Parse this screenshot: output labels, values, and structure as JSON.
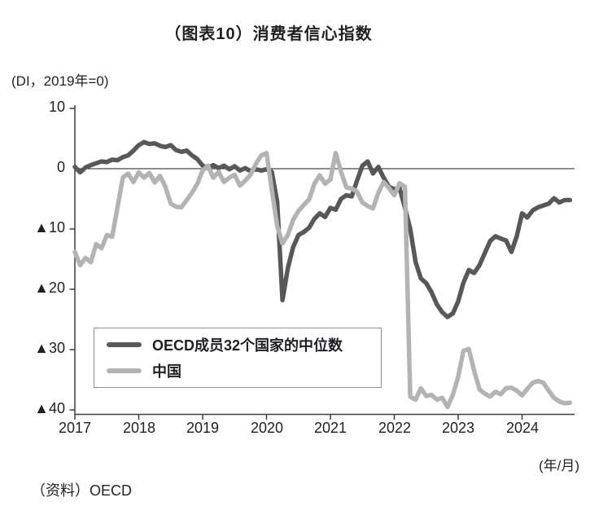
{
  "title": "（图表10）消费者信心指数",
  "unit_label": "(DI，2019年=0)",
  "axis_caption": "(年/月)",
  "source": "（资料）OECD",
  "colors": {
    "oecd_line": "#58585a",
    "china_line": "#b3b3b5",
    "axis": "#3c3c3f",
    "zero_line": "#1a1a1a",
    "text": "#1f1f24",
    "legend_border": "#8d8d90"
  },
  "legend": {
    "items": [
      {
        "label": "OECD成员32个国家的中位数"
      },
      {
        "label": "中国"
      }
    ]
  },
  "chart_data": {
    "type": "line",
    "title": "（图表10）消费者信心指数",
    "ylabel": "(DI，2019年=0)",
    "xlabel": "(年/月)",
    "x_unit": "monthly, Jan 2017 - Oct 2024",
    "x_tick_labels": [
      "2017",
      "2018",
      "2019",
      "2020",
      "2021",
      "2022",
      "2023",
      "2024"
    ],
    "y_tick_labels": [
      "10",
      "0",
      "▲10",
      "▲20",
      "▲30",
      "▲40"
    ],
    "y_tick_values": [
      10,
      0,
      -10,
      -20,
      -30,
      -40
    ],
    "ylim": [
      -41.5,
      10
    ],
    "grid": false,
    "zero_baseline": true,
    "legend_position": "lower-left",
    "series": [
      {
        "name": "OECD成员32个国家的中位数",
        "color": "#58585a",
        "values": [
          0.3,
          -0.6,
          0.2,
          0.6,
          0.9,
          1.2,
          1.1,
          1.5,
          1.4,
          1.9,
          2.2,
          3.0,
          3.9,
          4.4,
          4.1,
          4.2,
          3.8,
          3.6,
          3.9,
          3.1,
          2.8,
          3.0,
          2.2,
          1.6,
          0.5,
          0.1,
          0.6,
          0.1,
          0.5,
          -0.1,
          0.4,
          -0.3,
          0.1,
          -0.4,
          -0.1,
          -0.3,
          -0.1,
          -0.5,
          -5.5,
          -21.8,
          -16.5,
          -13.0,
          -11.0,
          -10.5,
          -9.8,
          -8.3,
          -7.4,
          -8.0,
          -6.5,
          -6.8,
          -5.0,
          -4.4,
          -4.6,
          -2.0,
          0.5,
          1.2,
          -0.8,
          0.3,
          -1.5,
          -3.0,
          -3.4,
          -3.2,
          -6.5,
          -10.0,
          -15.5,
          -18.2,
          -19.0,
          -20.5,
          -22.5,
          -23.8,
          -24.6,
          -24.0,
          -22.0,
          -18.9,
          -16.8,
          -17.3,
          -16.0,
          -14.0,
          -12.0,
          -11.2,
          -11.6,
          -11.9,
          -13.8,
          -11.2,
          -7.4,
          -8.1,
          -6.9,
          -6.4,
          -6.1,
          -5.8,
          -4.9,
          -5.6,
          -5.2,
          -5.2
        ]
      },
      {
        "name": "中国",
        "color": "#b3b3b5",
        "values": [
          -13.8,
          -16.0,
          -14.8,
          -15.5,
          -12.5,
          -13.2,
          -11.0,
          -11.3,
          -6.5,
          -1.5,
          -0.8,
          -2.2,
          -0.6,
          -1.5,
          -0.7,
          -2.3,
          -1.2,
          -3.0,
          -5.8,
          -6.3,
          -6.4,
          -5.2,
          -4.0,
          -2.5,
          -0.3,
          0.5,
          -1.5,
          -0.5,
          -2.2,
          -1.5,
          -1.0,
          -2.8,
          -2.0,
          -1.0,
          0.8,
          2.2,
          2.6,
          -3.5,
          -9.5,
          -12.4,
          -11.0,
          -8.5,
          -7.0,
          -6.0,
          -5.1,
          -2.5,
          -1.1,
          -2.5,
          -1.8,
          2.6,
          -0.5,
          -3.1,
          -3.3,
          -3.8,
          -5.6,
          -6.2,
          -6.6,
          -4.0,
          -2.2,
          -3.2,
          -4.4,
          -2.4,
          -3.0,
          -37.8,
          -38.3,
          -36.4,
          -37.7,
          -37.5,
          -38.3,
          -38.0,
          -39.5,
          -37.5,
          -34.5,
          -30.2,
          -29.9,
          -33.5,
          -36.6,
          -37.3,
          -37.8,
          -37.0,
          -37.4,
          -36.4,
          -36.3,
          -36.8,
          -37.6,
          -36.5,
          -35.5,
          -35.2,
          -35.5,
          -36.8,
          -38.0,
          -38.6,
          -38.9,
          -38.8
        ]
      }
    ]
  }
}
